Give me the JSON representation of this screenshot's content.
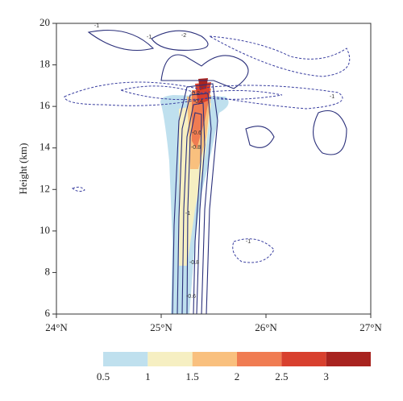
{
  "chart_data": {
    "type": "contour",
    "ylabel": "Height (km)",
    "xlim": [
      24,
      27
    ],
    "ylim": [
      6,
      20
    ],
    "xticks": [
      {
        "value": 24,
        "label": "24°N"
      },
      {
        "value": 25,
        "label": "25°N"
      },
      {
        "value": 26,
        "label": "26°N"
      },
      {
        "value": 27,
        "label": "27°N"
      }
    ],
    "yticks": [
      6,
      8,
      10,
      12,
      14,
      16,
      18,
      20
    ],
    "colorbar": {
      "levels": [
        0.5,
        1,
        1.5,
        2,
        2.5,
        3
      ],
      "colors": [
        "#bfe0ee",
        "#f6efc2",
        "#f9c07e",
        "#f07c52",
        "#d8402e",
        "#a8231f"
      ]
    },
    "contour_labels": [
      "-1",
      "-1",
      "-2",
      "-1",
      "-0.2",
      "-0.4",
      "-0.6",
      "-0.8",
      "-1",
      "-0.8",
      "-0.6",
      "-1"
    ]
  }
}
